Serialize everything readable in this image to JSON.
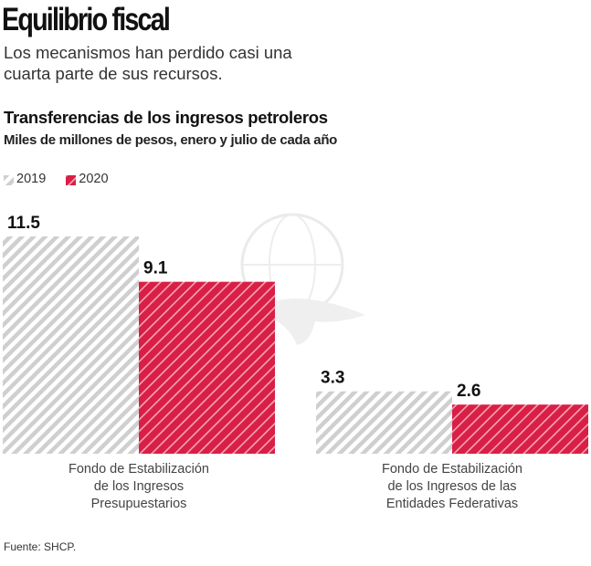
{
  "headline": "Equilibrio fiscal",
  "subhead": "Los mecanismos han perdido casi una cuarta parte de sus recursos.",
  "source": "Fuente: SHCP.",
  "colors": {
    "series_2019": "#cfcfcf",
    "series_2020": "#d91f45",
    "watermark": "#ececec"
  },
  "chart_data": {
    "type": "bar",
    "title": "Transferencias de los ingresos petroleros",
    "subtitle": "Miles de millones de pesos, enero y julio de cada año",
    "xlabel": "",
    "ylabel": "",
    "ylim": [
      0,
      11.5
    ],
    "grid": false,
    "legend_position": "top-left",
    "categories": [
      "Fondo de Estabilización de los Ingresos Presupuestarios",
      "Fondo de Estabilización de los Ingresos de las Entidades Federativas"
    ],
    "category_lines": [
      [
        "Fondo de Estabilización",
        "de los Ingresos",
        "Presupuestarios"
      ],
      [
        "Fondo de Estabilización",
        "de los Ingresos de las",
        "Entidades Federativas"
      ]
    ],
    "series": [
      {
        "name": "2019",
        "values": [
          11.5,
          3.3
        ],
        "labels": [
          "11.5",
          "3.3"
        ]
      },
      {
        "name": "2020",
        "values": [
          9.1,
          2.6
        ],
        "labels": [
          "9.1",
          "2.6"
        ]
      }
    ]
  }
}
